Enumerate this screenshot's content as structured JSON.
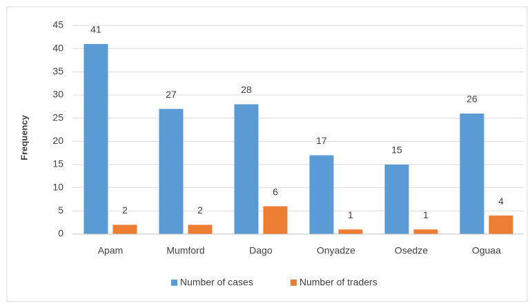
{
  "chart_data": {
    "type": "bar",
    "ylabel": "Frequency",
    "categories": [
      "Apam",
      "Mumford",
      "Dago",
      "Onyadze",
      "Osedze",
      "Oguaa"
    ],
    "series": [
      {
        "name": "Number of cases",
        "color": "#5b9bd5",
        "values": [
          41,
          27,
          28,
          17,
          15,
          26
        ]
      },
      {
        "name": "Number of traders",
        "color": "#ed7d31",
        "values": [
          2,
          2,
          6,
          1,
          1,
          4
        ]
      }
    ],
    "ylim": [
      0,
      45
    ],
    "yticks": [
      0,
      5,
      10,
      15,
      20,
      25,
      30,
      35,
      40,
      45
    ],
    "grid": true,
    "legend": "bottom",
    "data_labels": true
  }
}
